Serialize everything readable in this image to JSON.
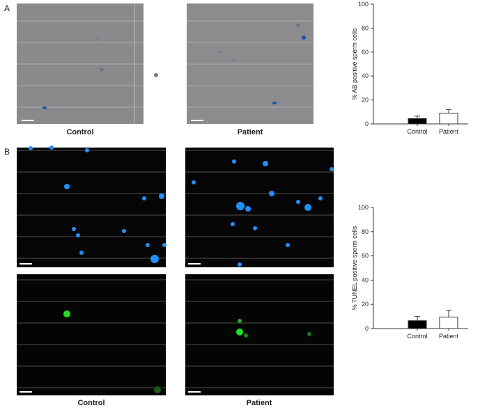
{
  "panels": [
    {
      "label": "A",
      "captions": [
        "Control",
        "Patient"
      ]
    },
    {
      "label": "B",
      "captions": [
        "Control",
        "Patient"
      ]
    }
  ],
  "chart_data": [
    {
      "type": "bar",
      "ylabel": "% AB positive sperm cells",
      "categories": [
        "Control",
        "Patient"
      ],
      "values": [
        4.5,
        9
      ],
      "errors": [
        2,
        3
      ],
      "colors": [
        "#000000",
        "#ffffff"
      ],
      "ylim": [
        0,
        100
      ],
      "yticks": [
        0,
        20,
        40,
        60,
        80,
        100
      ]
    },
    {
      "type": "bar",
      "ylabel": "% TUNEL positive sperm cells",
      "categories": [
        "Control",
        "Patient"
      ],
      "values": [
        6.5,
        9.5
      ],
      "errors": [
        3.5,
        5.5
      ],
      "colors": [
        "#000000",
        "#ffffff"
      ],
      "ylim": [
        0,
        100
      ],
      "yticks": [
        0,
        20,
        40,
        60,
        80,
        100
      ]
    }
  ]
}
